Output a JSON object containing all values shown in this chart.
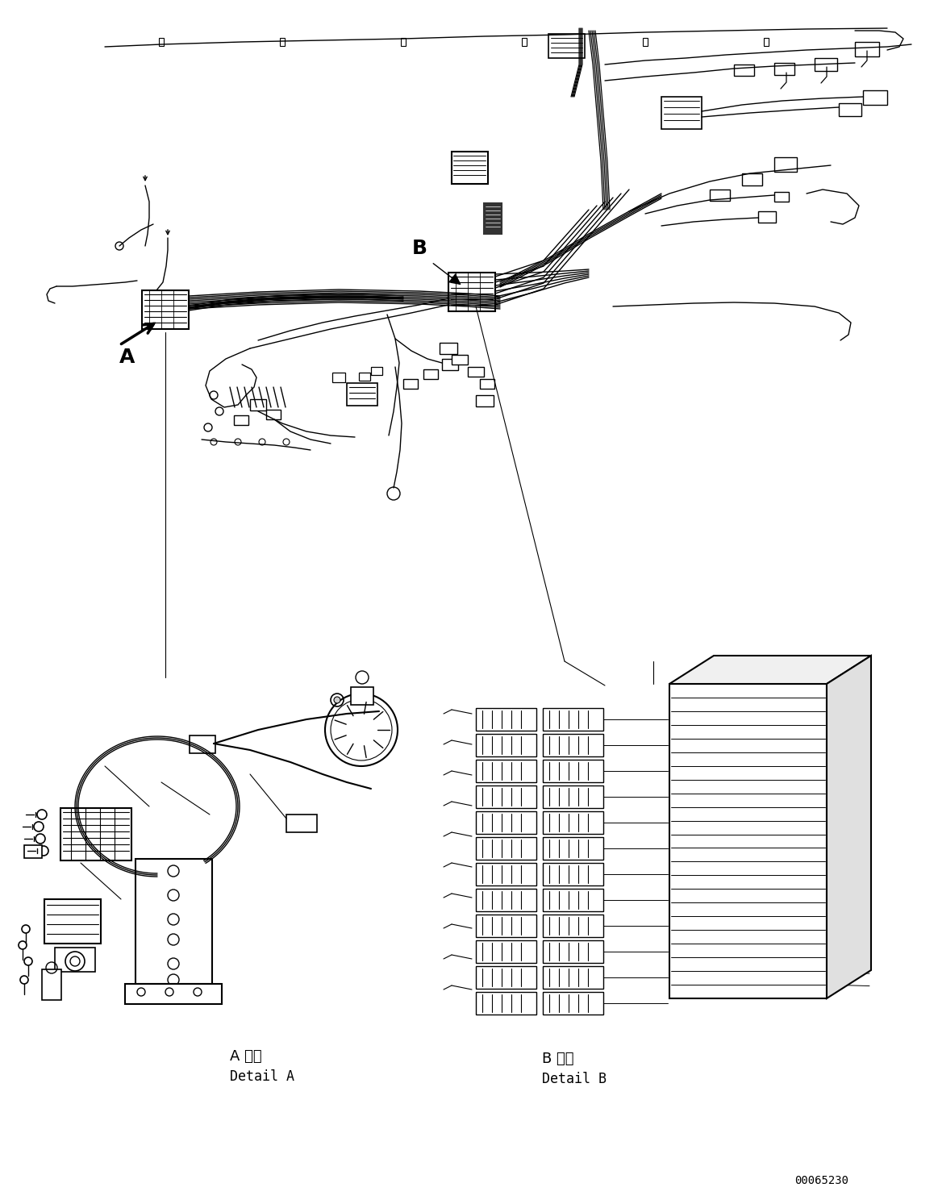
{
  "bg_color": "#ffffff",
  "line_color": "#000000",
  "fig_width": 11.63,
  "fig_height": 14.88,
  "dpi": 100,
  "label_A_text_jp": "A 詳細",
  "label_A_text_en": "Detail A",
  "label_B_text_jp": "B 詳細",
  "label_B_text_en": "Detail B",
  "part_number": "00065230",
  "arrow_A_label": "A",
  "arrow_B_label": "B",
  "font_size_detail_jp": 13,
  "font_size_detail_en": 12,
  "font_size_part": 10,
  "font_size_arrow": 18
}
